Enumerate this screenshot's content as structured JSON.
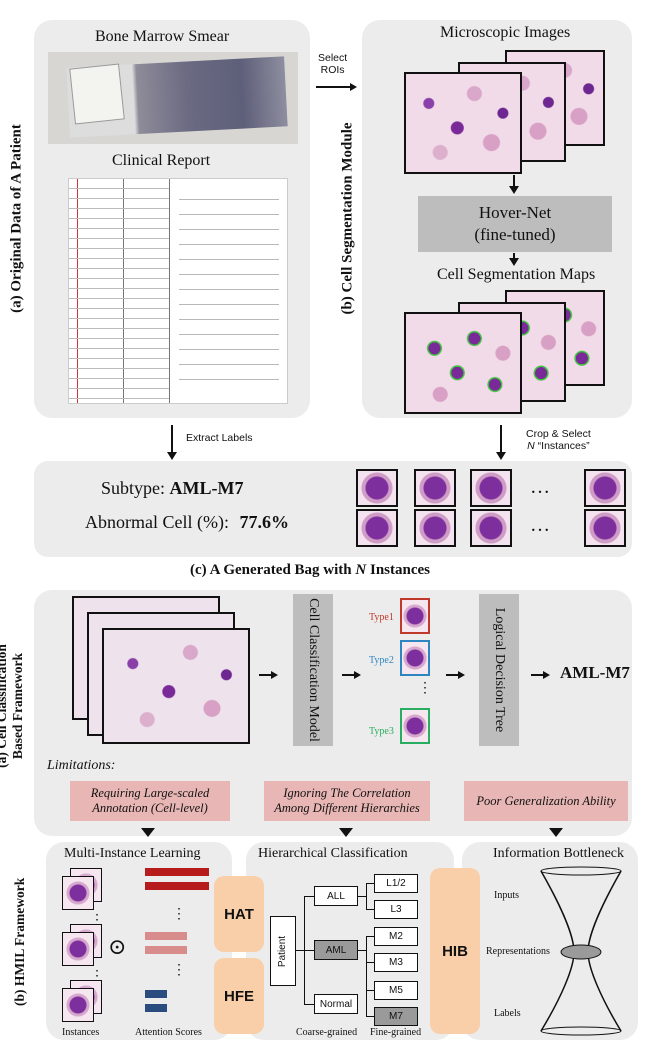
{
  "part1": {
    "panel_a_label": "(a) Original Data of A Patient",
    "panel_b_label": "(b) Cell Segmentation Module",
    "bone_marrow_smear": "Bone Marrow Smear",
    "clinical_report": "Clinical Report",
    "select_rois": "Select\nROIs",
    "microscopic_images": "Microscopic Images",
    "hovernet_line1": "Hover-Net",
    "hovernet_line2": "(fine-tuned)",
    "cell_seg_maps": "Cell Segmentation Maps",
    "extract_labels": "Extract Labels",
    "crop_select_line1": "Crop & Select",
    "crop_select_line2_pre": "N",
    "crop_select_line2_post": " “Instances”",
    "subtype_label": "Subtype:",
    "subtype_value": "AML-M7",
    "abnormal_label": "Abnormal Cell (%):",
    "abnormal_value": "77.6%",
    "ellipsis": "…",
    "caption_pre": "(c) A Generated Bag with ",
    "caption_n": "N",
    "caption_post": " Instances"
  },
  "part2": {
    "panel_a_label_line1": "(a) Cell Classification",
    "panel_a_label_line2": "Based Framework",
    "panel_b_label": "(b) HMIL Framework",
    "cell_class_model": "Cell Classification Model",
    "logical_tree": "Logical Decision Tree",
    "result": "AML-M7",
    "types": [
      {
        "label": "Type1",
        "color": "#c0392b"
      },
      {
        "label": "Type2",
        "color": "#2e86c1"
      },
      {
        "label": "Type3",
        "color": "#27ae60"
      }
    ],
    "vdots": "⋮",
    "limitations": "Limitations:",
    "limit1_line1": "Requiring Large-scaled",
    "limit1_line2": "Annotation (Cell-level)",
    "limit2_line1": "Ignoring The Correlation",
    "limit2_line2": "Among Different Hierarchies",
    "limit3": "Poor Generalization Ability",
    "mil_title": "Multi-Instance Learning",
    "hc_title": "Hierarchical Classification",
    "ib_title": "Information Bottleneck",
    "hat": "HAT",
    "hfe": "HFE",
    "hib": "HIB",
    "odot": "⊙",
    "instances": "Instances",
    "attention_scores": "Attention Scores",
    "patient": "Patient",
    "coarse": [
      "ALL",
      "AML",
      "Normal"
    ],
    "fine": [
      "L1/2",
      "L3",
      "M2",
      "M3",
      "M5",
      "M7"
    ],
    "coarse_grained": "Coarse-grained",
    "fine_grained": "Fine-grained",
    "ib_inputs": "Inputs",
    "ib_repr": "Representations",
    "ib_labels": "Labels"
  }
}
